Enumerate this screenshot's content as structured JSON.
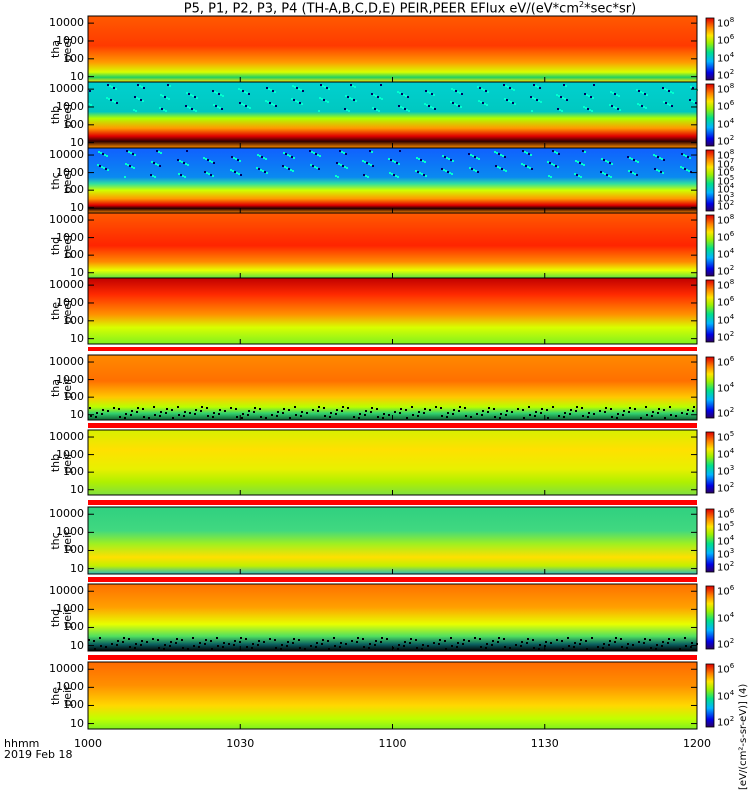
{
  "chart_data": {
    "type": "heatmap",
    "title": "P5, P1, P2, P3, P4 (TH-A,B,C,D,E) PEIR,PEER EFlux eV/(eV*cm",
    "title_sup": "2",
    "title_tail": "*sec*sr)",
    "x_ticks": [
      "1000",
      "1030",
      "1100",
      "1130",
      "1200"
    ],
    "x_label_line1": "hhmm",
    "x_label_line2": "2019 Feb 18",
    "colorbar_unit": "[eV/(cm²-s-sr-eV)] (4)",
    "y_scale": "log",
    "panels": [
      {
        "label1": "tha",
        "label2": "peer",
        "yticks": [
          "10000",
          "1000",
          "100",
          "10"
        ],
        "cbticks": [
          "8",
          "6",
          "4",
          "2"
        ]
      },
      {
        "label1": "thb",
        "label2": "peer",
        "yticks": [
          "10000",
          "1000",
          "100",
          "10"
        ],
        "cbticks": [
          "8",
          "6",
          "4",
          "2"
        ]
      },
      {
        "label1": "thc",
        "label2": "peer",
        "yticks": [
          "10000",
          "1000",
          "100",
          "10"
        ],
        "cbticks": [
          "8",
          "7",
          "6",
          "5",
          "4",
          "3",
          "2"
        ]
      },
      {
        "label1": "thd",
        "label2": "peer",
        "yticks": [
          "10000",
          "1000",
          "100",
          "10"
        ],
        "cbticks": [
          "8",
          "6",
          "4",
          "2"
        ]
      },
      {
        "label1": "the",
        "label2": "peer",
        "yticks": [
          "10000",
          "1000",
          "100",
          "10"
        ],
        "cbticks": [
          "8",
          "6",
          "4",
          "2"
        ]
      },
      {
        "label1": "tha",
        "label2": "peir",
        "yticks": [
          "10000",
          "1000",
          "100",
          "10"
        ],
        "cbticks": [
          "6",
          "4",
          "2"
        ]
      },
      {
        "label1": "thb",
        "label2": "peir",
        "yticks": [
          "10000",
          "1000",
          "100",
          "10"
        ],
        "cbticks": [
          "5",
          "4",
          "3",
          "2"
        ]
      },
      {
        "label1": "thc",
        "label2": "peir",
        "yticks": [
          "10000",
          "1000",
          "100",
          "10"
        ],
        "cbticks": [
          "6",
          "5",
          "4",
          "3",
          "2"
        ]
      },
      {
        "label1": "thd",
        "label2": "peir",
        "yticks": [
          "10000",
          "1000",
          "100",
          "10"
        ],
        "cbticks": [
          "6",
          "4",
          "2"
        ]
      },
      {
        "label1": "the",
        "label2": "peir",
        "yticks": [
          "10000",
          "1000",
          "100",
          "10"
        ],
        "cbticks": [
          "6",
          "4",
          "2"
        ]
      }
    ]
  }
}
